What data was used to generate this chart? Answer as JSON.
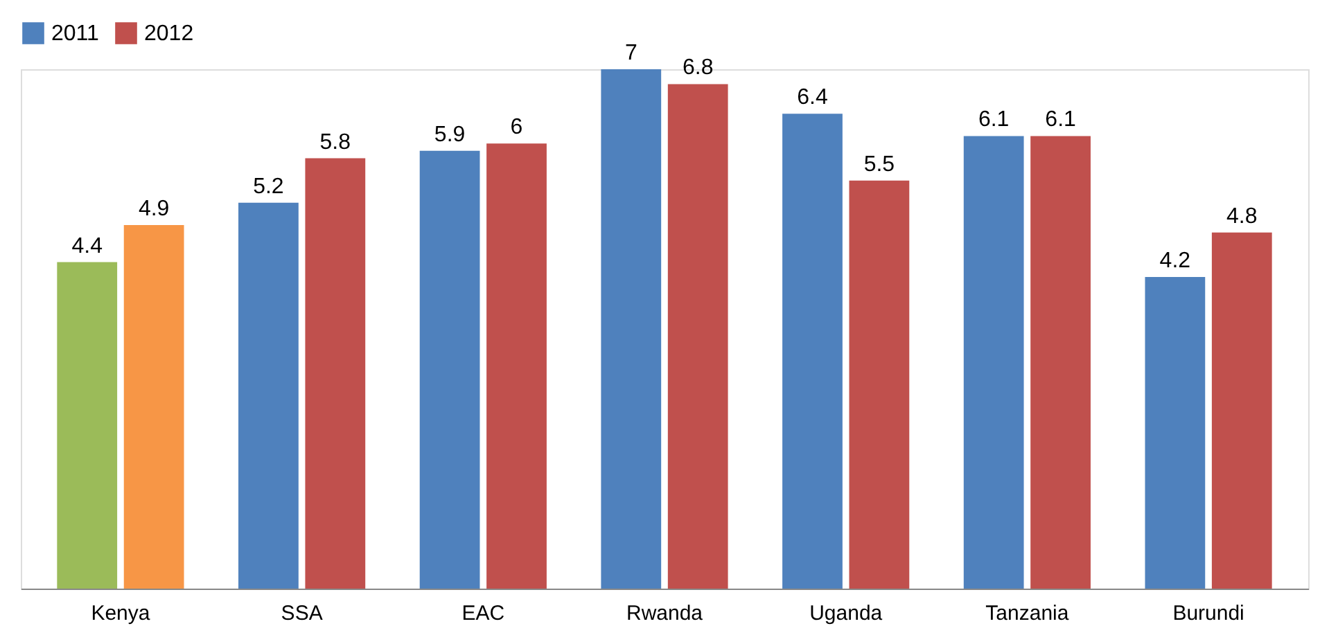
{
  "chart_data": {
    "type": "bar",
    "categories": [
      "Kenya",
      "SSA",
      "EAC",
      "Rwanda",
      "Uganda",
      "Tanzania",
      "Burundi"
    ],
    "series": [
      {
        "name": "2011",
        "color": "#4f81bd",
        "colors": [
          "#9bbb59",
          "#4f81bd",
          "#4f81bd",
          "#4f81bd",
          "#4f81bd",
          "#4f81bd",
          "#4f81bd"
        ],
        "values": [
          4.4,
          5.2,
          5.9,
          7,
          6.4,
          6.1,
          4.2
        ]
      },
      {
        "name": "2012",
        "color": "#c0504d",
        "colors": [
          "#f79646",
          "#c0504d",
          "#c0504d",
          "#c0504d",
          "#c0504d",
          "#c0504d",
          "#c0504d"
        ],
        "values": [
          4.9,
          5.8,
          6,
          6.8,
          5.5,
          6.1,
          4.8
        ]
      }
    ],
    "data_labels": true,
    "legend": "top",
    "grid": false
  }
}
